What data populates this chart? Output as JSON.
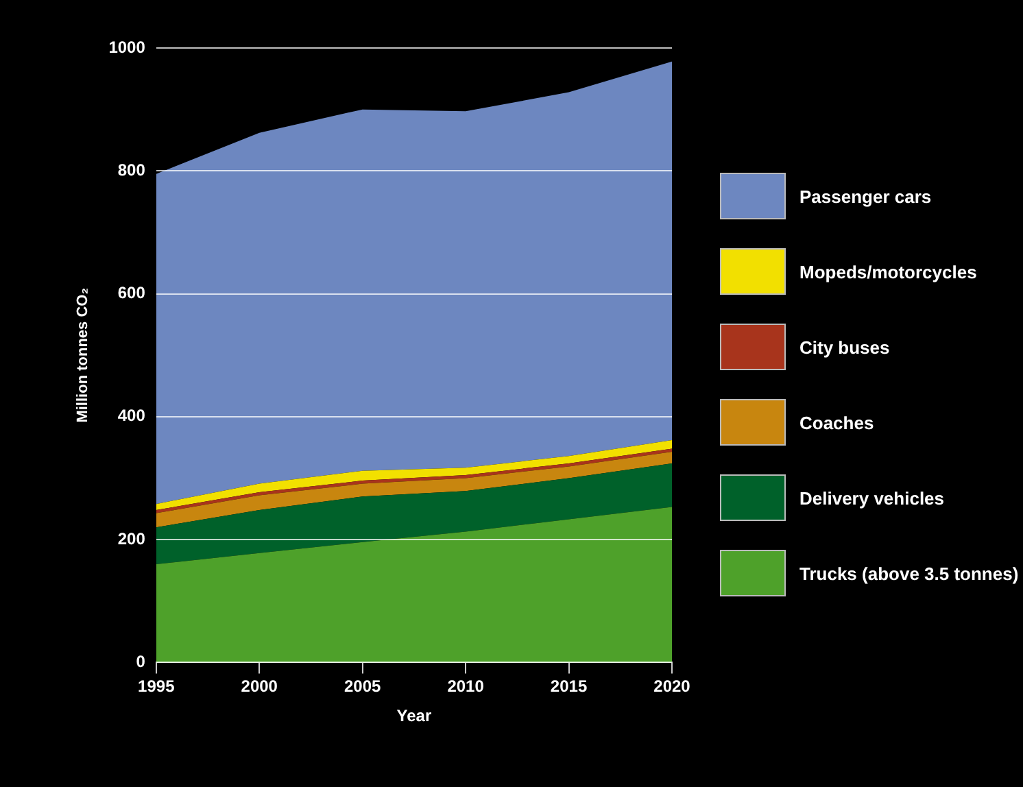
{
  "chart_data": {
    "type": "area",
    "stacked": true,
    "xlabel": "Year",
    "ylabel": "Million tonnes CO₂",
    "x": [
      1995,
      2000,
      2005,
      2010,
      2015,
      2020
    ],
    "xlim": [
      1995,
      2020
    ],
    "xticks": [
      1995,
      2000,
      2005,
      2010,
      2015,
      2020
    ],
    "ylim": [
      0,
      1000
    ],
    "yticks": [
      0,
      200,
      400,
      600,
      800,
      1000
    ],
    "grid": "y",
    "legend": "right",
    "series": [
      {
        "name": "Trucks (above 3.5 tonnes)",
        "color": "#4ea12a",
        "values": [
          160,
          178,
          196,
          213,
          233,
          253
        ]
      },
      {
        "name": "Delivery vehicles",
        "color": "#00612a",
        "values": [
          60,
          70,
          74,
          66,
          67,
          71
        ]
      },
      {
        "name": "Coaches",
        "color": "#c8860f",
        "values": [
          23,
          24,
          21,
          21,
          19,
          19
        ]
      },
      {
        "name": "City buses",
        "color": "#a8341c",
        "values": [
          5,
          5,
          5,
          5,
          5,
          5
        ]
      },
      {
        "name": "Mopeds/motorcycles",
        "color": "#f2e000",
        "values": [
          10,
          14,
          16,
          12,
          12,
          14
        ]
      },
      {
        "name": "Passenger cars",
        "color": "#6d87c0",
        "values": [
          537,
          571,
          588,
          580,
          592,
          616
        ]
      }
    ]
  }
}
